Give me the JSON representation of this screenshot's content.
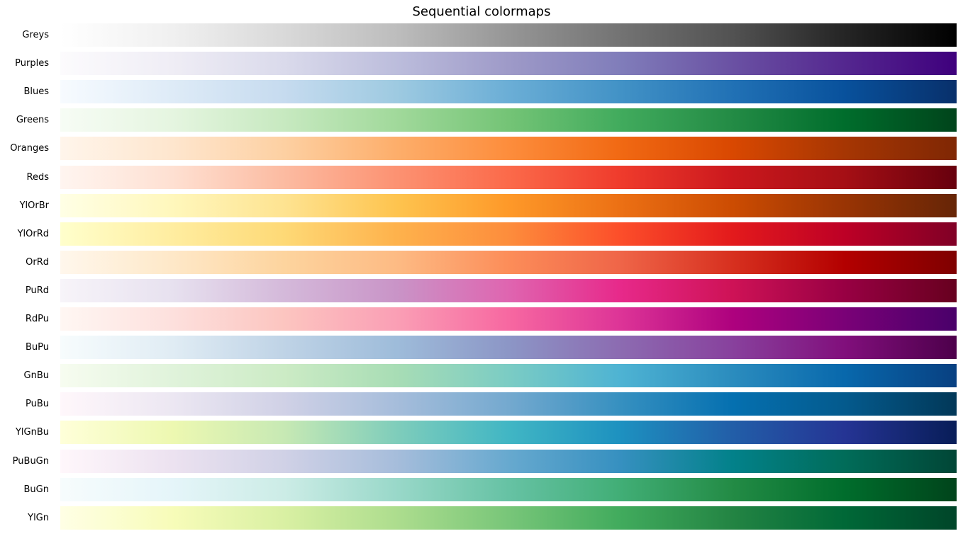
{
  "chart_data": {
    "type": "heatmap",
    "title": "Sequential colormaps",
    "xlabel": "",
    "ylabel": "",
    "grid": false,
    "axes_visible": false,
    "value_range": [
      0,
      1
    ],
    "colormaps": [
      {
        "name": "Greys",
        "colors": [
          "#ffffff",
          "#f0f0f0",
          "#d9d9d9",
          "#bdbdbd",
          "#969696",
          "#737373",
          "#525252",
          "#252525",
          "#000000"
        ]
      },
      {
        "name": "Purples",
        "colors": [
          "#fcfbfd",
          "#efedf5",
          "#dadaeb",
          "#bcbddc",
          "#9e9ac8",
          "#807dba",
          "#6a51a3",
          "#54278f",
          "#3f007d"
        ]
      },
      {
        "name": "Blues",
        "colors": [
          "#f7fbff",
          "#deebf7",
          "#c6dbef",
          "#9ecae1",
          "#6baed6",
          "#4292c6",
          "#2171b5",
          "#08519c",
          "#08306b"
        ]
      },
      {
        "name": "Greens",
        "colors": [
          "#f7fcf5",
          "#e5f5e0",
          "#c7e9c0",
          "#a1d99b",
          "#74c476",
          "#41ab5d",
          "#238b45",
          "#006d2c",
          "#00441b"
        ]
      },
      {
        "name": "Oranges",
        "colors": [
          "#fff5eb",
          "#fee6ce",
          "#fdd0a2",
          "#fdae6b",
          "#fd8d3c",
          "#f16913",
          "#d94801",
          "#a63603",
          "#7f2704"
        ]
      },
      {
        "name": "Reds",
        "colors": [
          "#fff5f0",
          "#fee0d2",
          "#fcbba1",
          "#fc9272",
          "#fb6a4a",
          "#ef3b2c",
          "#cb181d",
          "#a50f15",
          "#67000d"
        ]
      },
      {
        "name": "YlOrBr",
        "colors": [
          "#ffffe5",
          "#fff7bc",
          "#fee391",
          "#fec44f",
          "#fe9929",
          "#ec7014",
          "#cc4c02",
          "#993404",
          "#662506"
        ]
      },
      {
        "name": "YlOrRd",
        "colors": [
          "#ffffcc",
          "#ffeda0",
          "#fed976",
          "#feb24c",
          "#fd8d3c",
          "#fc4e2a",
          "#e31a1c",
          "#bd0026",
          "#800026"
        ]
      },
      {
        "name": "OrRd",
        "colors": [
          "#fff7ec",
          "#fee8c8",
          "#fdd49e",
          "#fdbb84",
          "#fc8d59",
          "#ef6548",
          "#d7301f",
          "#b30000",
          "#7f0000"
        ]
      },
      {
        "name": "PuRd",
        "colors": [
          "#f7f4f9",
          "#e7e1ef",
          "#d4b9da",
          "#c994c7",
          "#df65b0",
          "#e7298a",
          "#ce1256",
          "#980043",
          "#67001f"
        ]
      },
      {
        "name": "RdPu",
        "colors": [
          "#fff7f3",
          "#fde0dd",
          "#fcc5c0",
          "#fa9fb5",
          "#f768a1",
          "#dd3497",
          "#ae017e",
          "#7a0177",
          "#49006a"
        ]
      },
      {
        "name": "BuPu",
        "colors": [
          "#f7fcfd",
          "#e0ecf4",
          "#bfd3e6",
          "#9ebcda",
          "#8c96c6",
          "#8c6bb1",
          "#88419d",
          "#810f7c",
          "#4d004b"
        ]
      },
      {
        "name": "GnBu",
        "colors": [
          "#f7fcf0",
          "#e0f3db",
          "#ccebc5",
          "#a8ddb5",
          "#7bccc4",
          "#4eb3d3",
          "#2b8cbe",
          "#0868ac",
          "#084081"
        ]
      },
      {
        "name": "PuBu",
        "colors": [
          "#fff7fb",
          "#ece7f2",
          "#d0d1e6",
          "#a6bddb",
          "#74a9cf",
          "#3690c0",
          "#0570b0",
          "#045a8d",
          "#023858"
        ]
      },
      {
        "name": "YlGnBu",
        "colors": [
          "#ffffd9",
          "#edf8b1",
          "#c7e9b4",
          "#7fcdbb",
          "#41b6c4",
          "#1d91c0",
          "#225ea8",
          "#253494",
          "#081d58"
        ]
      },
      {
        "name": "PuBuGn",
        "colors": [
          "#fff7fb",
          "#ece2f0",
          "#d0d1e6",
          "#a6bddb",
          "#67a9cf",
          "#3690c0",
          "#02818a",
          "#016c59",
          "#014636"
        ]
      },
      {
        "name": "BuGn",
        "colors": [
          "#f7fcfd",
          "#e5f5f9",
          "#ccece6",
          "#99d8c9",
          "#66c2a4",
          "#41ae76",
          "#238b45",
          "#006d2c",
          "#00441b"
        ]
      },
      {
        "name": "YlGn",
        "colors": [
          "#ffffe5",
          "#f7fcb9",
          "#d9f0a3",
          "#addd8e",
          "#78c679",
          "#41ab5d",
          "#238443",
          "#006837",
          "#004529"
        ]
      }
    ]
  }
}
